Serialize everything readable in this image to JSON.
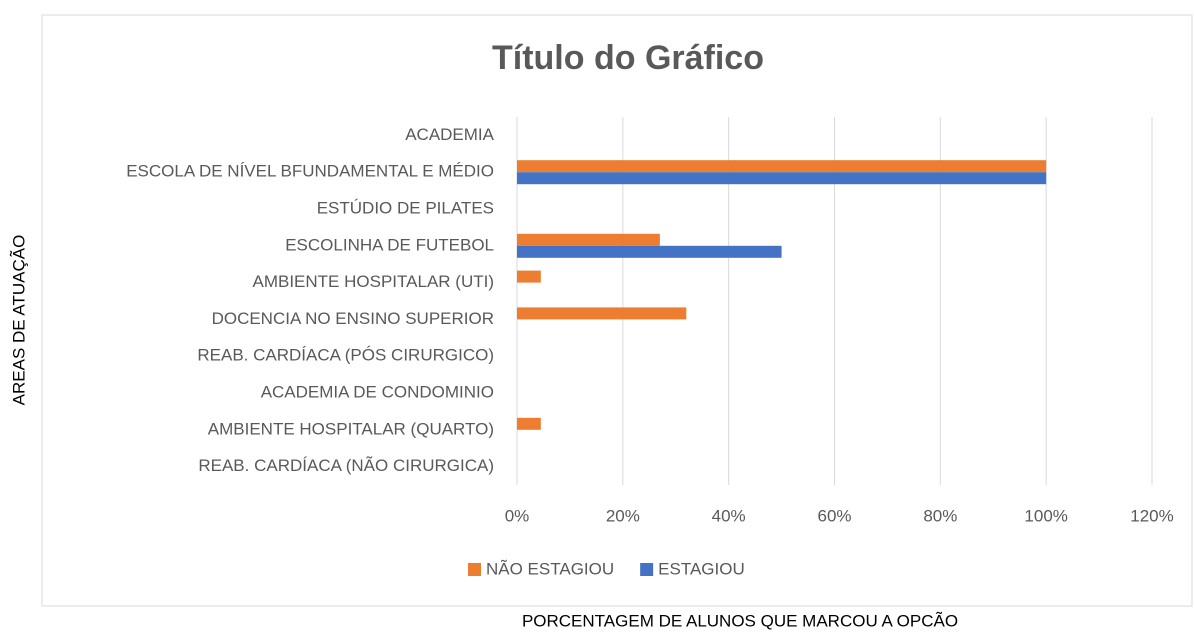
{
  "chart_data": {
    "type": "hbar",
    "title": "Título do Gráfico",
    "xlabel": "PORCENTAGEM DE ALUNOS QUE MARCOU A OPCÃO",
    "ylabel": "AREAS DE ATUAÇÃO",
    "categories": [
      "ACADEMIA",
      "ESCOLA DE NÍVEL BFUNDAMENTAL E MÉDIO",
      "ESTÚDIO DE PILATES",
      "ESCOLINHA DE FUTEBOL",
      "AMBIENTE HOSPITALAR (UTI)",
      "DOCENCIA NO ENSINO SUPERIOR",
      "REAB. CARDÍACA (PÓS CIRURGICO)",
      "ACADEMIA DE CONDOMINIO",
      "AMBIENTE HOSPITALAR (QUARTO)",
      "REAB. CARDÍACA (NÃO CIRURGICA)"
    ],
    "series": [
      {
        "name": "NÃO ESTAGIOU",
        "color": "#ed7d31",
        "values": [
          0,
          100,
          0,
          27,
          4.5,
          32,
          0,
          0,
          4.5,
          0
        ]
      },
      {
        "name": "ESTAGIOU",
        "color": "#4472c4",
        "values": [
          0,
          100,
          0,
          50,
          0,
          0,
          0,
          0,
          0,
          0
        ]
      }
    ],
    "xlim": [
      0,
      120
    ],
    "xticks": [
      {
        "value": 0,
        "label": "0%"
      },
      {
        "value": 20,
        "label": "20%"
      },
      {
        "value": 40,
        "label": "40%"
      },
      {
        "value": 60,
        "label": "60%"
      },
      {
        "value": 80,
        "label": "80%"
      },
      {
        "value": 100,
        "label": "100%"
      },
      {
        "value": 120,
        "label": "120%"
      }
    ],
    "grid": true,
    "legend": "bottom"
  }
}
